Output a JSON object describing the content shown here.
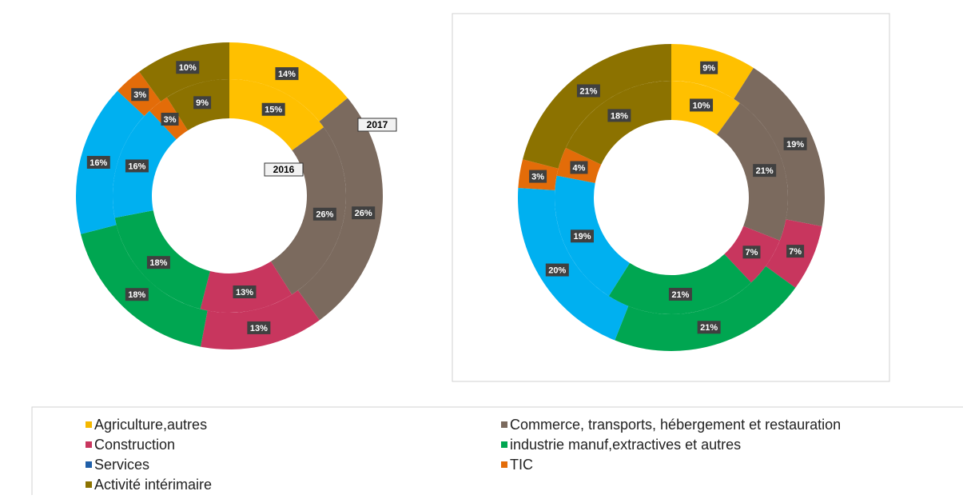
{
  "chart_data": [
    {
      "type": "donut",
      "categories": [
        "Agriculture,autres",
        "Commerce, transports, hébergement et restauration",
        "Construction",
        "industrie manuf,extractives et autres",
        "Services",
        "TIC",
        "Activité intérimaire"
      ],
      "colors": [
        "#ffc000",
        "#7b6a5e",
        "#c8365e",
        "#00a651",
        "#00b0f0",
        "#e36c09",
        "#8c7200"
      ],
      "legend_colors": [
        "#f5b800",
        "#7b6a5e",
        "#c8365e",
        "#00a651",
        "#1f5fa8",
        "#e36c09",
        "#8c7200"
      ],
      "series": [
        {
          "name": "2016",
          "values": [
            15,
            26,
            13,
            18,
            16,
            3,
            9
          ],
          "value_labels": [
            "15%",
            "26%",
            "13%",
            "18%",
            "16%",
            "3%",
            "9%"
          ]
        },
        {
          "name": "2017",
          "values": [
            14,
            26,
            13,
            18,
            16,
            3,
            10
          ],
          "value_labels": [
            "14%",
            "26%",
            "13%",
            "18%",
            "16%",
            "3%",
            "10%"
          ]
        }
      ]
    },
    {
      "type": "donut",
      "series": [
        {
          "values": [
            10,
            21,
            7,
            21,
            19,
            4,
            18
          ],
          "value_labels": [
            "10%",
            "21%",
            "7%",
            "21%",
            "19%",
            "4%",
            "18%"
          ]
        },
        {
          "values": [
            9,
            19,
            7,
            21,
            20,
            3,
            21
          ],
          "value_labels": [
            "9%",
            "19%",
            "7%",
            "21%",
            "20%",
            "3%",
            "21%"
          ]
        }
      ]
    }
  ]
}
